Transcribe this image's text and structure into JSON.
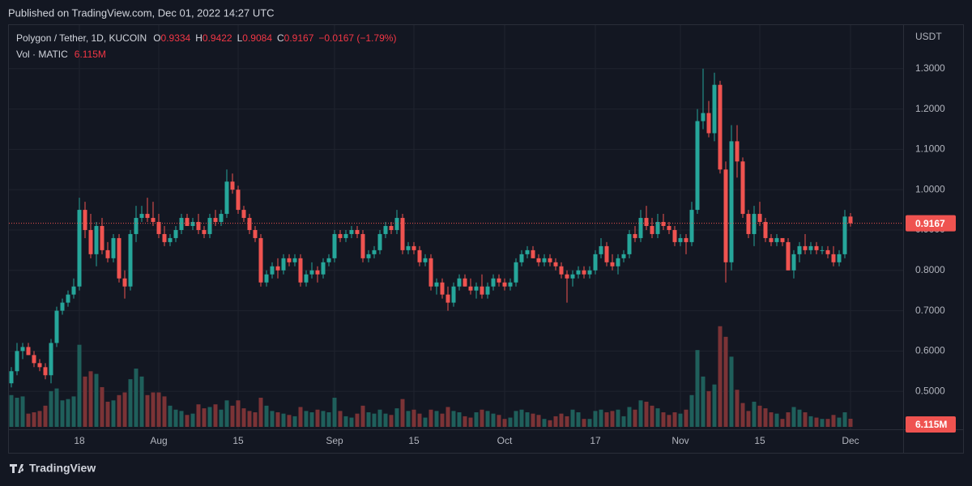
{
  "chart_data": {
    "type": "candlestick",
    "published": "Published on TradingView.com, Dec 01, 2022 14:27 UTC",
    "title": "Polygon / Tether, 1D, KUCOIN",
    "ohlc_letters": [
      "O",
      "H",
      "L",
      "C"
    ],
    "change": "−0.0167 (−1.79%)",
    "volume_title": "Vol · MATIC",
    "last_volume_label": "6.115M",
    "currency": "USDT",
    "brand": "TradingView",
    "up_color": "#26a69a",
    "down_color": "#ef5350",
    "volume_up_color": "#1f5f5b",
    "volume_down_color": "#7b3336",
    "grid": true,
    "ylim": [
      0.412,
      1.408
    ],
    "yticks": [
      {
        "value": 0.5,
        "label": "0.5000"
      },
      {
        "value": 0.6,
        "label": "0.6000"
      },
      {
        "value": 0.7,
        "label": "0.7000"
      },
      {
        "value": 0.8,
        "label": "0.8000"
      },
      {
        "value": 0.9,
        "label": "0.9000"
      },
      {
        "value": 1.0,
        "label": "1.0000"
      },
      {
        "value": 1.1,
        "label": "1.1000"
      },
      {
        "value": 1.2,
        "label": "1.2000"
      },
      {
        "value": 1.3,
        "label": "1.3000"
      }
    ],
    "volume_lim": [
      0,
      200000000
    ],
    "xticks": [
      {
        "value": "2022-07-18",
        "label": "18"
      },
      {
        "value": "2022-08-01",
        "label": "Aug"
      },
      {
        "value": "2022-08-15",
        "label": "15"
      },
      {
        "value": "2022-09-01",
        "label": "Sep"
      },
      {
        "value": "2022-09-15",
        "label": "15"
      },
      {
        "value": "2022-10-01",
        "label": "Oct"
      },
      {
        "value": "2022-10-17",
        "label": "17"
      },
      {
        "value": "2022-11-01",
        "label": "Nov"
      },
      {
        "value": "2022-11-15",
        "label": "15"
      },
      {
        "value": "2022-12-01",
        "label": "Dec"
      }
    ],
    "candles": [
      [
        "2022-07-06",
        0.52,
        0.56,
        0.51,
        0.55,
        24000000.0
      ],
      [
        "2022-07-07",
        0.55,
        0.62,
        0.54,
        0.6,
        22000000.0
      ],
      [
        "2022-07-08",
        0.6,
        0.62,
        0.58,
        0.61,
        23000000.0
      ],
      [
        "2022-07-09",
        0.61,
        0.62,
        0.59,
        0.59,
        10000000.0
      ],
      [
        "2022-07-10",
        0.59,
        0.6,
        0.56,
        0.57,
        11000000.0
      ],
      [
        "2022-07-11",
        0.57,
        0.58,
        0.55,
        0.56,
        12000000.0
      ],
      [
        "2022-07-12",
        0.56,
        0.57,
        0.53,
        0.54,
        16000000.0
      ],
      [
        "2022-07-13",
        0.54,
        0.63,
        0.52,
        0.62,
        27000000.0
      ],
      [
        "2022-07-14",
        0.62,
        0.71,
        0.61,
        0.7,
        29000000.0
      ],
      [
        "2022-07-15",
        0.7,
        0.73,
        0.69,
        0.72,
        20000000.0
      ],
      [
        "2022-07-16",
        0.72,
        0.75,
        0.71,
        0.74,
        21000000.0
      ],
      [
        "2022-07-17",
        0.74,
        0.78,
        0.73,
        0.76,
        23000000.0
      ],
      [
        "2022-07-18",
        0.76,
        0.98,
        0.75,
        0.95,
        62000000.0
      ],
      [
        "2022-07-19",
        0.95,
        0.97,
        0.88,
        0.9,
        38000000.0
      ],
      [
        "2022-07-20",
        0.9,
        0.94,
        0.83,
        0.84,
        42000000.0
      ],
      [
        "2022-07-21",
        0.84,
        0.92,
        0.81,
        0.91,
        40000000.0
      ],
      [
        "2022-07-22",
        0.91,
        0.93,
        0.84,
        0.85,
        30000000.0
      ],
      [
        "2022-07-23",
        0.85,
        0.87,
        0.82,
        0.83,
        19000000.0
      ],
      [
        "2022-07-24",
        0.83,
        0.89,
        0.82,
        0.88,
        20000000.0
      ],
      [
        "2022-07-25",
        0.88,
        0.89,
        0.77,
        0.78,
        24000000.0
      ],
      [
        "2022-07-26",
        0.78,
        0.8,
        0.73,
        0.76,
        26000000.0
      ],
      [
        "2022-07-27",
        0.76,
        0.9,
        0.75,
        0.89,
        36000000.0
      ],
      [
        "2022-07-28",
        0.89,
        0.96,
        0.87,
        0.93,
        44000000.0
      ],
      [
        "2022-07-29",
        0.93,
        0.96,
        0.92,
        0.94,
        38000000.0
      ],
      [
        "2022-07-30",
        0.94,
        0.98,
        0.92,
        0.93,
        24000000.0
      ],
      [
        "2022-07-31",
        0.93,
        0.97,
        0.91,
        0.92,
        26000000.0
      ],
      [
        "2022-08-01",
        0.92,
        0.94,
        0.88,
        0.89,
        26000000.0
      ],
      [
        "2022-08-02",
        0.89,
        0.91,
        0.86,
        0.87,
        23000000.0
      ],
      [
        "2022-08-03",
        0.87,
        0.89,
        0.86,
        0.88,
        16000000.0
      ],
      [
        "2022-08-04",
        0.88,
        0.91,
        0.87,
        0.9,
        13000000.0
      ],
      [
        "2022-08-05",
        0.9,
        0.94,
        0.89,
        0.93,
        12000000.0
      ],
      [
        "2022-08-06",
        0.93,
        0.94,
        0.91,
        0.91,
        9000000.0
      ],
      [
        "2022-08-07",
        0.91,
        0.93,
        0.9,
        0.92,
        10000000.0
      ],
      [
        "2022-08-08",
        0.92,
        0.94,
        0.89,
        0.9,
        17000000.0
      ],
      [
        "2022-08-09",
        0.9,
        0.91,
        0.88,
        0.89,
        14000000.0
      ],
      [
        "2022-08-10",
        0.89,
        0.94,
        0.88,
        0.93,
        15000000.0
      ],
      [
        "2022-08-11",
        0.93,
        0.95,
        0.91,
        0.92,
        17000000.0
      ],
      [
        "2022-08-12",
        0.92,
        0.95,
        0.91,
        0.94,
        13000000.0
      ],
      [
        "2022-08-13",
        0.94,
        1.05,
        0.93,
        1.02,
        20000000.0
      ],
      [
        "2022-08-14",
        1.02,
        1.04,
        0.99,
        1.0,
        16000000.0
      ],
      [
        "2022-08-15",
        1.0,
        1.01,
        0.94,
        0.95,
        20000000.0
      ],
      [
        "2022-08-16",
        0.95,
        0.96,
        0.92,
        0.93,
        14000000.0
      ],
      [
        "2022-08-17",
        0.93,
        0.94,
        0.89,
        0.9,
        12000000.0
      ],
      [
        "2022-08-18",
        0.9,
        0.91,
        0.87,
        0.88,
        11000000.0
      ],
      [
        "2022-08-19",
        0.88,
        0.89,
        0.76,
        0.77,
        22000000.0
      ],
      [
        "2022-08-20",
        0.77,
        0.8,
        0.76,
        0.79,
        16000000.0
      ],
      [
        "2022-08-21",
        0.79,
        0.82,
        0.78,
        0.81,
        12000000.0
      ],
      [
        "2022-08-22",
        0.81,
        0.83,
        0.78,
        0.8,
        11000000.0
      ],
      [
        "2022-08-23",
        0.8,
        0.84,
        0.79,
        0.83,
        10000000.0
      ],
      [
        "2022-08-24",
        0.83,
        0.84,
        0.81,
        0.82,
        9000000.0
      ],
      [
        "2022-08-25",
        0.82,
        0.84,
        0.81,
        0.83,
        8000000.0
      ],
      [
        "2022-08-26",
        0.83,
        0.84,
        0.76,
        0.77,
        15000000.0
      ],
      [
        "2022-08-27",
        0.77,
        0.8,
        0.76,
        0.79,
        12000000.0
      ],
      [
        "2022-08-28",
        0.79,
        0.82,
        0.78,
        0.8,
        11000000.0
      ],
      [
        "2022-08-29",
        0.8,
        0.81,
        0.77,
        0.79,
        13000000.0
      ],
      [
        "2022-08-30",
        0.79,
        0.83,
        0.78,
        0.82,
        12000000.0
      ],
      [
        "2022-08-31",
        0.82,
        0.84,
        0.81,
        0.83,
        11000000.0
      ],
      [
        "2022-09-01",
        0.83,
        0.9,
        0.82,
        0.89,
        22000000.0
      ],
      [
        "2022-09-02",
        0.89,
        0.9,
        0.87,
        0.88,
        12000000.0
      ],
      [
        "2022-09-03",
        0.88,
        0.9,
        0.87,
        0.89,
        8000000.0
      ],
      [
        "2022-09-04",
        0.89,
        0.91,
        0.88,
        0.9,
        7000000.0
      ],
      [
        "2022-09-05",
        0.9,
        0.91,
        0.88,
        0.89,
        10000000.0
      ],
      [
        "2022-09-06",
        0.89,
        0.9,
        0.82,
        0.83,
        16000000.0
      ],
      [
        "2022-09-07",
        0.83,
        0.85,
        0.82,
        0.84,
        11000000.0
      ],
      [
        "2022-09-08",
        0.84,
        0.86,
        0.83,
        0.85,
        10000000.0
      ],
      [
        "2022-09-09",
        0.85,
        0.9,
        0.84,
        0.89,
        13000000.0
      ],
      [
        "2022-09-10",
        0.89,
        0.92,
        0.88,
        0.91,
        10000000.0
      ],
      [
        "2022-09-11",
        0.91,
        0.92,
        0.89,
        0.9,
        9000000.0
      ],
      [
        "2022-09-12",
        0.9,
        0.95,
        0.89,
        0.93,
        14000000.0
      ],
      [
        "2022-09-13",
        0.93,
        0.94,
        0.84,
        0.85,
        21000000.0
      ],
      [
        "2022-09-14",
        0.85,
        0.87,
        0.84,
        0.86,
        12000000.0
      ],
      [
        "2022-09-15",
        0.86,
        0.87,
        0.84,
        0.85,
        13000000.0
      ],
      [
        "2022-09-16",
        0.85,
        0.86,
        0.81,
        0.82,
        10000000.0
      ],
      [
        "2022-09-17",
        0.82,
        0.84,
        0.81,
        0.83,
        7000000.0
      ],
      [
        "2022-09-18",
        0.83,
        0.84,
        0.75,
        0.76,
        13000000.0
      ],
      [
        "2022-09-19",
        0.76,
        0.78,
        0.74,
        0.77,
        12000000.0
      ],
      [
        "2022-09-20",
        0.77,
        0.78,
        0.73,
        0.74,
        10000000.0
      ],
      [
        "2022-09-21",
        0.74,
        0.76,
        0.7,
        0.72,
        15000000.0
      ],
      [
        "2022-09-22",
        0.72,
        0.77,
        0.71,
        0.76,
        12000000.0
      ],
      [
        "2022-09-23",
        0.76,
        0.79,
        0.75,
        0.78,
        11000000.0
      ],
      [
        "2022-09-24",
        0.78,
        0.79,
        0.76,
        0.76,
        8000000.0
      ],
      [
        "2022-09-25",
        0.76,
        0.78,
        0.74,
        0.75,
        7000000.0
      ],
      [
        "2022-09-26",
        0.75,
        0.77,
        0.73,
        0.76,
        11000000.0
      ],
      [
        "2022-09-27",
        0.76,
        0.79,
        0.73,
        0.74,
        13000000.0
      ],
      [
        "2022-09-28",
        0.74,
        0.77,
        0.73,
        0.76,
        12000000.0
      ],
      [
        "2022-09-29",
        0.76,
        0.79,
        0.75,
        0.78,
        10000000.0
      ],
      [
        "2022-09-30",
        0.78,
        0.79,
        0.76,
        0.77,
        9000000.0
      ],
      [
        "2022-10-01",
        0.77,
        0.78,
        0.75,
        0.76,
        6000000.0
      ],
      [
        "2022-10-02",
        0.76,
        0.78,
        0.75,
        0.77,
        7000000.0
      ],
      [
        "2022-10-03",
        0.77,
        0.83,
        0.76,
        0.82,
        12000000.0
      ],
      [
        "2022-10-04",
        0.82,
        0.85,
        0.81,
        0.84,
        13000000.0
      ],
      [
        "2022-10-05",
        0.84,
        0.86,
        0.83,
        0.85,
        11000000.0
      ],
      [
        "2022-10-06",
        0.85,
        0.86,
        0.83,
        0.83,
        10000000.0
      ],
      [
        "2022-10-07",
        0.83,
        0.84,
        0.81,
        0.82,
        9000000.0
      ],
      [
        "2022-10-08",
        0.82,
        0.84,
        0.81,
        0.83,
        6000000.0
      ],
      [
        "2022-10-09",
        0.83,
        0.84,
        0.81,
        0.82,
        5000000.0
      ],
      [
        "2022-10-10",
        0.82,
        0.83,
        0.8,
        0.81,
        8000000.0
      ],
      [
        "2022-10-11",
        0.81,
        0.82,
        0.78,
        0.79,
        10000000.0
      ],
      [
        "2022-10-12",
        0.79,
        0.8,
        0.72,
        0.78,
        8000000.0
      ],
      [
        "2022-10-13",
        0.78,
        0.8,
        0.76,
        0.79,
        13000000.0
      ],
      [
        "2022-10-14",
        0.79,
        0.81,
        0.78,
        0.8,
        11000000.0
      ],
      [
        "2022-10-15",
        0.8,
        0.81,
        0.78,
        0.79,
        6000000.0
      ],
      [
        "2022-10-16",
        0.79,
        0.81,
        0.78,
        0.8,
        6000000.0
      ],
      [
        "2022-10-17",
        0.8,
        0.85,
        0.79,
        0.84,
        12000000.0
      ],
      [
        "2022-10-18",
        0.84,
        0.88,
        0.83,
        0.86,
        13000000.0
      ],
      [
        "2022-10-19",
        0.86,
        0.87,
        0.81,
        0.82,
        11000000.0
      ],
      [
        "2022-10-20",
        0.82,
        0.84,
        0.8,
        0.81,
        12000000.0
      ],
      [
        "2022-10-21",
        0.81,
        0.84,
        0.79,
        0.83,
        13000000.0
      ],
      [
        "2022-10-22",
        0.83,
        0.85,
        0.82,
        0.84,
        8000000.0
      ],
      [
        "2022-10-23",
        0.84,
        0.9,
        0.83,
        0.89,
        15000000.0
      ],
      [
        "2022-10-24",
        0.89,
        0.91,
        0.87,
        0.88,
        13000000.0
      ],
      [
        "2022-10-25",
        0.88,
        0.95,
        0.87,
        0.93,
        20000000.0
      ],
      [
        "2022-10-26",
        0.93,
        0.96,
        0.9,
        0.91,
        19000000.0
      ],
      [
        "2022-10-27",
        0.91,
        0.93,
        0.88,
        0.89,
        16000000.0
      ],
      [
        "2022-10-28",
        0.89,
        0.94,
        0.88,
        0.92,
        14000000.0
      ],
      [
        "2022-10-29",
        0.92,
        0.94,
        0.9,
        0.91,
        11000000.0
      ],
      [
        "2022-10-30",
        0.91,
        0.92,
        0.89,
        0.9,
        9000000.0
      ],
      [
        "2022-10-31",
        0.9,
        0.91,
        0.86,
        0.87,
        11000000.0
      ],
      [
        "2022-11-01",
        0.87,
        0.89,
        0.86,
        0.88,
        10000000.0
      ],
      [
        "2022-11-02",
        0.88,
        0.89,
        0.84,
        0.87,
        13000000.0
      ],
      [
        "2022-11-03",
        0.87,
        0.97,
        0.86,
        0.95,
        24000000.0
      ],
      [
        "2022-11-04",
        0.95,
        1.2,
        0.94,
        1.17,
        58000000.0
      ],
      [
        "2022-11-05",
        1.17,
        1.3,
        1.15,
        1.19,
        38000000.0
      ],
      [
        "2022-11-06",
        1.19,
        1.22,
        1.13,
        1.14,
        27000000.0
      ],
      [
        "2022-11-07",
        1.14,
        1.29,
        1.12,
        1.26,
        32000000.0
      ],
      [
        "2022-11-08",
        1.26,
        1.27,
        1.04,
        1.05,
        76000000.0
      ],
      [
        "2022-11-09",
        1.05,
        1.07,
        0.77,
        0.82,
        68000000.0
      ],
      [
        "2022-11-10",
        0.82,
        1.16,
        0.8,
        1.12,
        53000000.0
      ],
      [
        "2022-11-11",
        1.12,
        1.16,
        1.03,
        1.07,
        28000000.0
      ],
      [
        "2022-11-12",
        1.07,
        1.08,
        0.93,
        0.94,
        18000000.0
      ],
      [
        "2022-11-13",
        0.94,
        0.95,
        0.88,
        0.89,
        12000000.0
      ],
      [
        "2022-11-14",
        0.89,
        0.96,
        0.86,
        0.94,
        19000000.0
      ],
      [
        "2022-11-15",
        0.94,
        0.97,
        0.91,
        0.92,
        16000000.0
      ],
      [
        "2022-11-16",
        0.92,
        0.93,
        0.87,
        0.88,
        14000000.0
      ],
      [
        "2022-11-17",
        0.88,
        0.89,
        0.86,
        0.87,
        11000000.0
      ],
      [
        "2022-11-18",
        0.87,
        0.89,
        0.86,
        0.88,
        10000000.0
      ],
      [
        "2022-11-19",
        0.88,
        0.88,
        0.86,
        0.87,
        6000000.0
      ],
      [
        "2022-11-20",
        0.87,
        0.88,
        0.8,
        0.8,
        11000000.0
      ],
      [
        "2022-11-21",
        0.8,
        0.85,
        0.78,
        0.84,
        15000000.0
      ],
      [
        "2022-11-22",
        0.84,
        0.87,
        0.82,
        0.86,
        13000000.0
      ],
      [
        "2022-11-23",
        0.86,
        0.89,
        0.84,
        0.85,
        11000000.0
      ],
      [
        "2022-11-24",
        0.85,
        0.87,
        0.84,
        0.86,
        8000000.0
      ],
      [
        "2022-11-25",
        0.86,
        0.87,
        0.84,
        0.85,
        7000000.0
      ],
      [
        "2022-11-26",
        0.85,
        0.86,
        0.84,
        0.85,
        6000000.0
      ],
      [
        "2022-11-27",
        0.85,
        0.86,
        0.83,
        0.84,
        6000000.0
      ],
      [
        "2022-11-28",
        0.84,
        0.86,
        0.81,
        0.82,
        9000000.0
      ],
      [
        "2022-11-29",
        0.82,
        0.85,
        0.81,
        0.84,
        7000000.0
      ],
      [
        "2022-11-30",
        0.84,
        0.95,
        0.83,
        0.9334,
        11000000.0
      ],
      [
        "2022-12-01",
        0.9334,
        0.9422,
        0.9084,
        0.9167,
        6115000
      ]
    ]
  }
}
